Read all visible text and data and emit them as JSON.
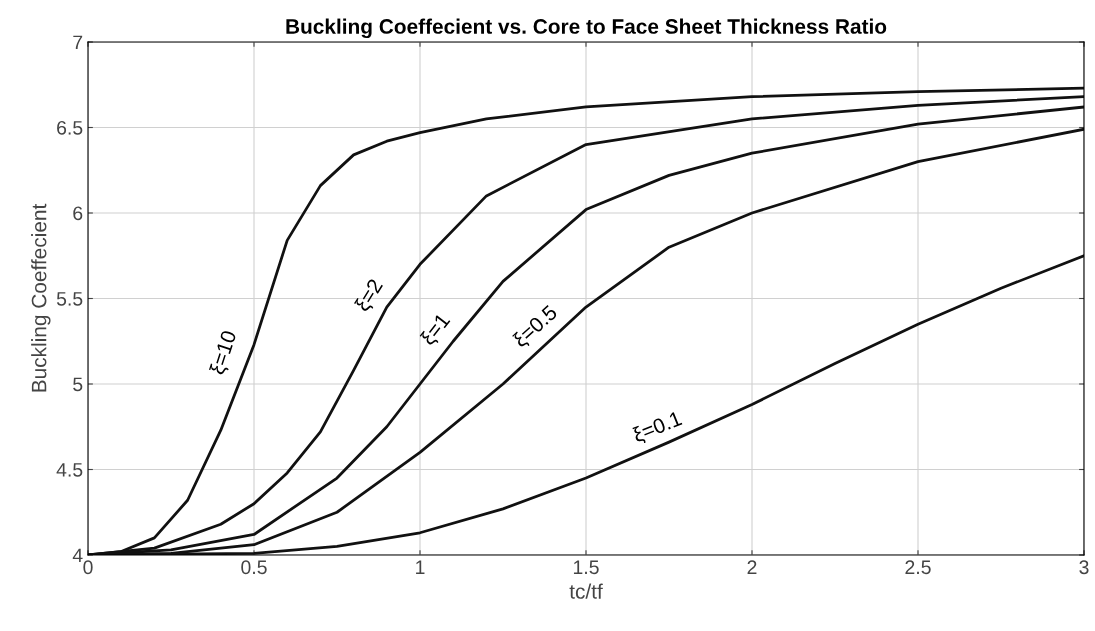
{
  "chart_data": {
    "type": "line",
    "title": "Buckling Coeffecient vs. Core to Face Sheet Thickness Ratio",
    "xlabel": "tc/tf",
    "ylabel": "Buckling Coeffecient",
    "xlim": [
      0,
      3
    ],
    "ylim": [
      4,
      7
    ],
    "xticks": [
      0,
      0.5,
      1,
      1.5,
      2,
      2.5,
      3
    ],
    "yticks": [
      4,
      4.5,
      5,
      5.5,
      6,
      6.5,
      7
    ],
    "grid": true,
    "marker": "none",
    "line_style": "solid",
    "series": [
      {
        "color": "#111111",
        "x": [
          0,
          0.1,
          0.2,
          0.3,
          0.4,
          0.5,
          0.6,
          0.7,
          0.8,
          0.9,
          1.0,
          1.2,
          1.5,
          2,
          2.5,
          3
        ],
        "values": [
          4,
          4.02,
          4.1,
          4.32,
          4.73,
          5.23,
          5.84,
          6.16,
          6.34,
          6.42,
          6.47,
          6.55,
          6.62,
          6.68,
          6.71,
          6.73
        ]
      },
      {
        "color": "#111111",
        "x": [
          0,
          0.2,
          0.4,
          0.5,
          0.6,
          0.7,
          0.8,
          0.9,
          1.0,
          1.2,
          1.5,
          2,
          2.5,
          3
        ],
        "values": [
          4,
          4.04,
          4.18,
          4.3,
          4.48,
          4.72,
          5.08,
          5.45,
          5.7,
          6.1,
          6.4,
          6.55,
          6.63,
          6.68
        ]
      },
      {
        "color": "#111111",
        "x": [
          0,
          0.25,
          0.5,
          0.75,
          0.9,
          1.0,
          1.1,
          1.25,
          1.5,
          1.75,
          2,
          2.5,
          3
        ],
        "values": [
          4,
          4.03,
          4.12,
          4.45,
          4.75,
          5.0,
          5.25,
          5.6,
          6.02,
          6.22,
          6.35,
          6.52,
          6.62
        ]
      },
      {
        "color": "#111111",
        "x": [
          0,
          0.25,
          0.5,
          0.75,
          1.0,
          1.25,
          1.5,
          1.75,
          2,
          2.5,
          3
        ],
        "values": [
          4,
          4.01,
          4.06,
          4.25,
          4.6,
          5.0,
          5.45,
          5.8,
          6.0,
          6.3,
          6.49
        ]
      },
      {
        "color": "#111111",
        "x": [
          0,
          0.5,
          0.75,
          1.0,
          1.25,
          1.5,
          1.75,
          2,
          2.25,
          2.5,
          2.75,
          3
        ],
        "values": [
          4,
          4.01,
          4.05,
          4.13,
          4.27,
          4.45,
          4.66,
          4.88,
          5.12,
          5.35,
          5.56,
          5.75
        ]
      }
    ],
    "annotations": [
      {
        "text": "ξ=10",
        "x": 0.47,
        "y": 5.1
      },
      {
        "text": "ξ=2",
        "x": 0.9,
        "y": 5.45
      },
      {
        "text": "ξ=1",
        "x": 1.1,
        "y": 5.25
      },
      {
        "text": "ξ=0.5",
        "x": 1.4,
        "y": 5.25
      },
      {
        "text": "ξ=0.1",
        "x": 1.75,
        "y": 4.66
      }
    ]
  }
}
